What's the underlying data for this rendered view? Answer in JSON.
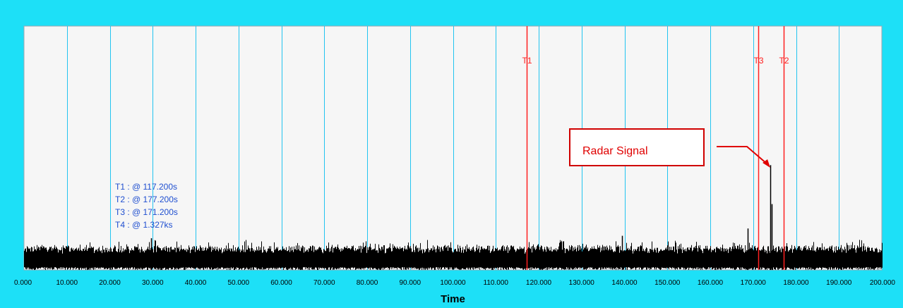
{
  "chart_data": {
    "type": "line",
    "xlabel": "Time",
    "xlim": [
      0,
      200
    ],
    "x_ticks": [
      0,
      10,
      20,
      30,
      40,
      50,
      60,
      70,
      80,
      90,
      100,
      110,
      120,
      130,
      140,
      150,
      160,
      170,
      180,
      190,
      200
    ],
    "x_tick_labels": [
      "0.000",
      "10.000",
      "20.000",
      "30.000",
      "40.000",
      "50.000",
      "60.000",
      "70.000",
      "80.000",
      "90.000",
      "100.000",
      "110.000",
      "120.000",
      "130.000",
      "140.000",
      "150.000",
      "160.000",
      "170.000",
      "180.000",
      "190.000",
      "200.000"
    ],
    "grid": true,
    "series": [
      {
        "noise_floor_fraction": 0.08,
        "noise_peak_fraction": 0.12,
        "spikes": [
          {
            "x": 174.0,
            "height_fraction": 0.43
          },
          {
            "x": 174.3,
            "height_fraction": 0.27
          },
          {
            "x": 168.8,
            "height_fraction": 0.17
          },
          {
            "x": 29.7,
            "height_fraction": 0.13
          },
          {
            "x": 139.5,
            "height_fraction": 0.14
          }
        ]
      }
    ],
    "cursors": [
      {
        "label": "T1",
        "x": 117.2
      },
      {
        "label": "T3",
        "x": 171.2
      },
      {
        "label": "T2",
        "x": 177.2
      }
    ],
    "cursor_readouts": [
      "T1 : @ 117.200s",
      "T2 : @ 177.200s",
      "T3 : @ 171.200s",
      "T4 : @ 1.327ks"
    ],
    "annotation": {
      "text": "Radar Signal",
      "points_to_x": 174.0
    }
  },
  "colors": {
    "frame": "#1de0f7",
    "plot_background": "#f6f6f6",
    "grid": "#22c4f0",
    "signal": "#000000",
    "cursor": "#ff2020",
    "readout_text": "#1f4fd0",
    "annotation": "#e00000"
  }
}
